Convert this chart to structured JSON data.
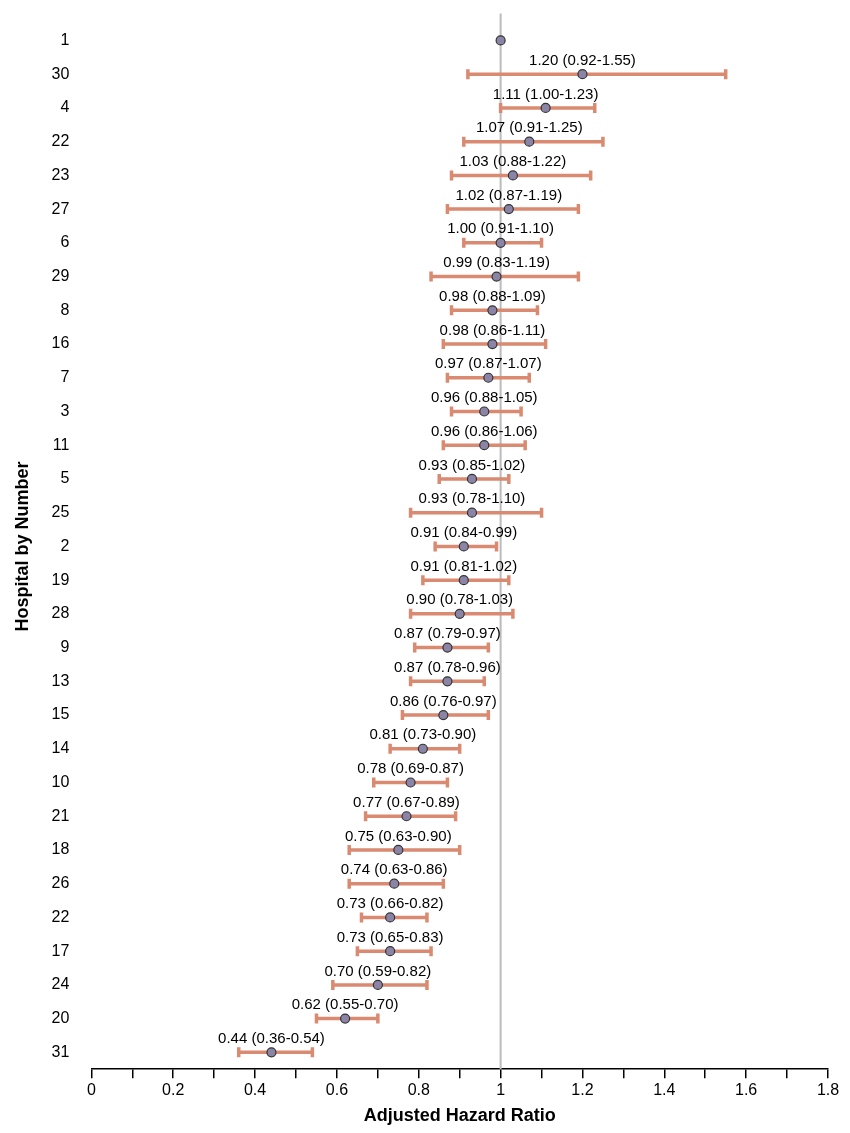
{
  "chart_data": {
    "type": "scatter",
    "orientation": "horizontal",
    "xlabel": "Adjusted Hazard Ratio",
    "ylabel": "Hospital by Number",
    "categories": [
      "1",
      "30",
      "4",
      "22",
      "23",
      "27",
      "6",
      "29",
      "8",
      "16",
      "7",
      "3",
      "11",
      "5",
      "25",
      "2",
      "19",
      "28",
      "9",
      "13",
      "15",
      "14",
      "10",
      "21",
      "18",
      "26",
      "22",
      "17",
      "24",
      "20",
      "31"
    ],
    "values": [
      1.0,
      1.2,
      1.11,
      1.07,
      1.03,
      1.02,
      1.0,
      0.99,
      0.98,
      0.98,
      0.97,
      0.96,
      0.96,
      0.93,
      0.93,
      0.91,
      0.91,
      0.9,
      0.87,
      0.87,
      0.86,
      0.81,
      0.78,
      0.77,
      0.75,
      0.74,
      0.73,
      0.73,
      0.7,
      0.62,
      0.44
    ],
    "errors": [
      null,
      [
        0.92,
        1.55
      ],
      [
        1.0,
        1.23
      ],
      [
        0.91,
        1.25
      ],
      [
        0.88,
        1.22
      ],
      [
        0.87,
        1.19
      ],
      [
        0.91,
        1.1
      ],
      [
        0.83,
        1.19
      ],
      [
        0.88,
        1.09
      ],
      [
        0.86,
        1.11
      ],
      [
        0.87,
        1.07
      ],
      [
        0.88,
        1.05
      ],
      [
        0.86,
        1.06
      ],
      [
        0.85,
        1.02
      ],
      [
        0.78,
        1.1
      ],
      [
        0.84,
        0.99
      ],
      [
        0.81,
        1.02
      ],
      [
        0.78,
        1.03
      ],
      [
        0.79,
        0.97
      ],
      [
        0.78,
        0.96
      ],
      [
        0.76,
        0.97
      ],
      [
        0.73,
        0.9
      ],
      [
        0.69,
        0.87
      ],
      [
        0.67,
        0.89
      ],
      [
        0.63,
        0.9
      ],
      [
        0.63,
        0.86
      ],
      [
        0.66,
        0.82
      ],
      [
        0.65,
        0.83
      ],
      [
        0.59,
        0.82
      ],
      [
        0.55,
        0.7
      ],
      [
        0.36,
        0.54
      ]
    ],
    "value_labels": [
      null,
      "1.20 (0.92-1.55)",
      "1.11 (1.00-1.23)",
      "1.07 (0.91-1.25)",
      "1.03 (0.88-1.22)",
      "1.02 (0.87-1.19)",
      "1.00 (0.91-1.10)",
      "0.99 (0.83-1.19)",
      "0.98 (0.88-1.09)",
      "0.98 (0.86-1.11)",
      "0.97 (0.87-1.07)",
      "0.96 (0.88-1.05)",
      "0.96 (0.86-1.06)",
      "0.93 (0.85-1.02)",
      "0.93 (0.78-1.10)",
      "0.91 (0.84-0.99)",
      "0.91 (0.81-1.02)",
      "0.90 (0.78-1.03)",
      "0.87 (0.79-0.97)",
      "0.87 (0.78-0.96)",
      "0.86 (0.76-0.97)",
      "0.81 (0.73-0.90)",
      "0.78 (0.69-0.87)",
      "0.77 (0.67-0.89)",
      "0.75 (0.63-0.90)",
      "0.74 (0.63-0.86)",
      "0.73 (0.66-0.82)",
      "0.73 (0.65-0.83)",
      "0.70 (0.59-0.82)",
      "0.62 (0.55-0.70)",
      "0.44 (0.36-0.54)"
    ],
    "color": "#8c84a6",
    "marker": "circle",
    "xlim": [
      0,
      1.8
    ],
    "xticks": [
      0,
      {
        "value": 0.1,
        "label": null
      },
      0.2,
      {
        "value": 0.3,
        "label": null
      },
      0.4,
      {
        "value": 0.5,
        "label": null
      },
      0.6,
      {
        "value": 0.7,
        "label": null
      },
      0.8,
      {
        "value": 0.9,
        "label": null
      },
      1,
      {
        "value": 1.1,
        "label": null
      },
      1.2,
      {
        "value": 1.3,
        "label": null
      },
      1.4,
      {
        "value": 1.5,
        "label": null
      },
      1.6,
      {
        "value": 1.7,
        "label": null
      },
      1.8
    ],
    "ref_lines": [
      {
        "axis": "x",
        "value": 1,
        "color": "#bbbbbb"
      }
    ]
  }
}
